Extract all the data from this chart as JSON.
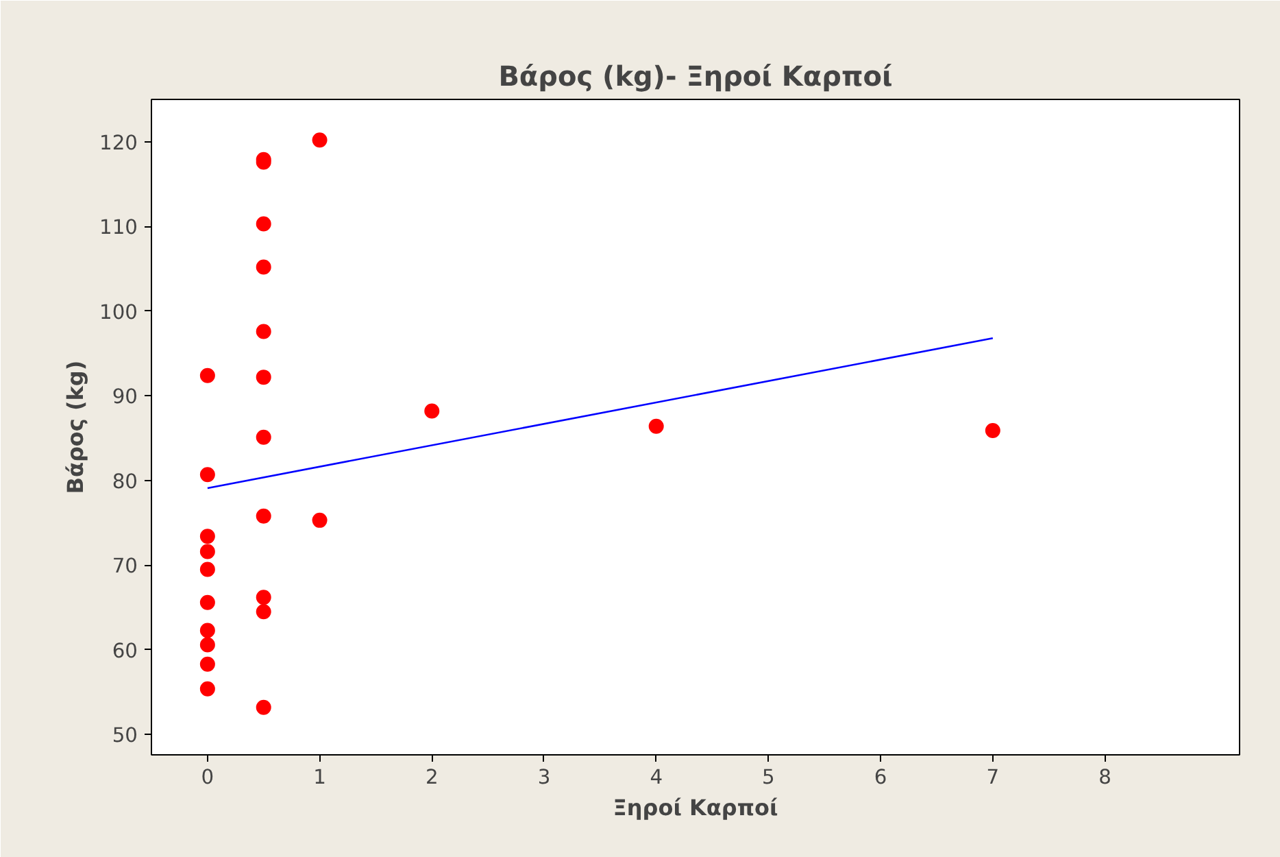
{
  "chart_data": {
    "type": "scatter",
    "title": "Βάρος (kg)- Ξηροί Καρποί",
    "xlabel": "Ξηροί Καρποί",
    "ylabel": "Βάρος (kg)",
    "xlim": [
      -0.5,
      9.2
    ],
    "ylim": [
      47.6,
      125
    ],
    "xticks": [
      0,
      1,
      2,
      3,
      4,
      5,
      6,
      7,
      8
    ],
    "yticks": [
      50,
      60,
      70,
      80,
      90,
      100,
      110,
      120
    ],
    "grid": false,
    "marker": "circle",
    "series": [
      {
        "color": "#ff0000",
        "x": [
          0,
          0,
          0,
          0,
          0,
          0,
          0,
          0,
          0,
          0,
          0.5,
          0.5,
          0.5,
          0.5,
          0.5,
          0.5,
          0.5,
          0.5,
          0.5,
          0.5,
          0.5,
          1,
          1,
          2,
          4,
          7
        ],
        "values": [
          92.4,
          80.7,
          73.4,
          71.6,
          69.5,
          65.6,
          62.3,
          60.6,
          58.3,
          55.4,
          117.9,
          117.6,
          110.3,
          105.2,
          97.6,
          92.2,
          85.1,
          75.8,
          66.2,
          64.5,
          53.2,
          120.2,
          75.3,
          88.2,
          86.4,
          85.9
        ]
      },
      {
        "type": "line",
        "marker": "none",
        "color": "#0000ff",
        "x": [
          0,
          7
        ],
        "values": [
          79.1,
          96.8
        ]
      }
    ]
  }
}
